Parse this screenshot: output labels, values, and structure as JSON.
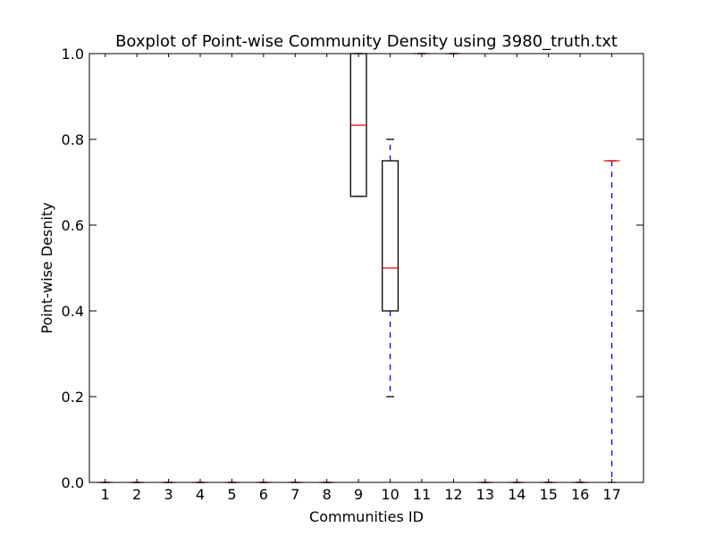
{
  "chart_data": {
    "type": "boxplot",
    "title": "Boxplot of Point-wise Community Density using 3980_truth.txt",
    "xlabel": "Communities ID",
    "ylabel": "Point-wise Desnity",
    "ylim": [
      0.0,
      1.0
    ],
    "yticks": [
      "0.0",
      "0.2",
      "0.4",
      "0.6",
      "0.8",
      "1.0"
    ],
    "grid": false,
    "colors": {
      "box": "#000000",
      "median": "#ff0000",
      "whisker": "#0000ff",
      "cap": "#000000"
    },
    "categories": [
      "1",
      "2",
      "3",
      "4",
      "5",
      "6",
      "7",
      "8",
      "9",
      "10",
      "11",
      "12",
      "13",
      "14",
      "15",
      "16",
      "17"
    ],
    "boxes": [
      {
        "id": "1",
        "whislo": 0.0,
        "q1": 0.0,
        "med": 0.0,
        "q3": 0.0,
        "whishi": 0.0
      },
      {
        "id": "2",
        "whislo": 0.0,
        "q1": 0.0,
        "med": 0.0,
        "q3": 0.0,
        "whishi": 0.0
      },
      {
        "id": "3",
        "whislo": 0.0,
        "q1": 0.0,
        "med": 0.0,
        "q3": 0.0,
        "whishi": 0.0
      },
      {
        "id": "4",
        "whislo": 0.0,
        "q1": 0.0,
        "med": 0.0,
        "q3": 0.0,
        "whishi": 0.0
      },
      {
        "id": "5",
        "whislo": 0.0,
        "q1": 0.0,
        "med": 0.0,
        "q3": 0.0,
        "whishi": 0.0
      },
      {
        "id": "6",
        "whislo": 0.0,
        "q1": 0.0,
        "med": 0.0,
        "q3": 0.0,
        "whishi": 0.0
      },
      {
        "id": "7",
        "whislo": 0.0,
        "q1": 0.0,
        "med": 0.0,
        "q3": 0.0,
        "whishi": 0.0
      },
      {
        "id": "8",
        "whislo": 0.0,
        "q1": 0.0,
        "med": 0.0,
        "q3": 0.0,
        "whishi": 0.0
      },
      {
        "id": "9",
        "whislo": 0.667,
        "q1": 0.667,
        "med": 0.833,
        "q3": 1.0,
        "whishi": 1.0
      },
      {
        "id": "10",
        "whislo": 0.2,
        "q1": 0.4,
        "med": 0.5,
        "q3": 0.75,
        "whishi": 0.8
      },
      {
        "id": "11",
        "whislo": 1.0,
        "q1": 1.0,
        "med": 1.0,
        "q3": 1.0,
        "whishi": 1.0
      },
      {
        "id": "12",
        "whislo": 1.0,
        "q1": 1.0,
        "med": 1.0,
        "q3": 1.0,
        "whishi": 1.0
      },
      {
        "id": "13",
        "whislo": 0.0,
        "q1": 0.0,
        "med": 0.0,
        "q3": 0.0,
        "whishi": 0.0
      },
      {
        "id": "14",
        "whislo": 0.0,
        "q1": 0.0,
        "med": 0.0,
        "q3": 0.0,
        "whishi": 0.0
      },
      {
        "id": "15",
        "whislo": 0.0,
        "q1": 0.0,
        "med": 0.0,
        "q3": 0.0,
        "whishi": 0.0
      },
      {
        "id": "16",
        "whislo": 0.0,
        "q1": 0.0,
        "med": 0.0,
        "q3": 0.0,
        "whishi": 0.0
      },
      {
        "id": "17",
        "whislo": 0.0,
        "q1": 0.75,
        "med": 0.75,
        "q3": 0.75,
        "whishi": 0.75
      }
    ]
  }
}
